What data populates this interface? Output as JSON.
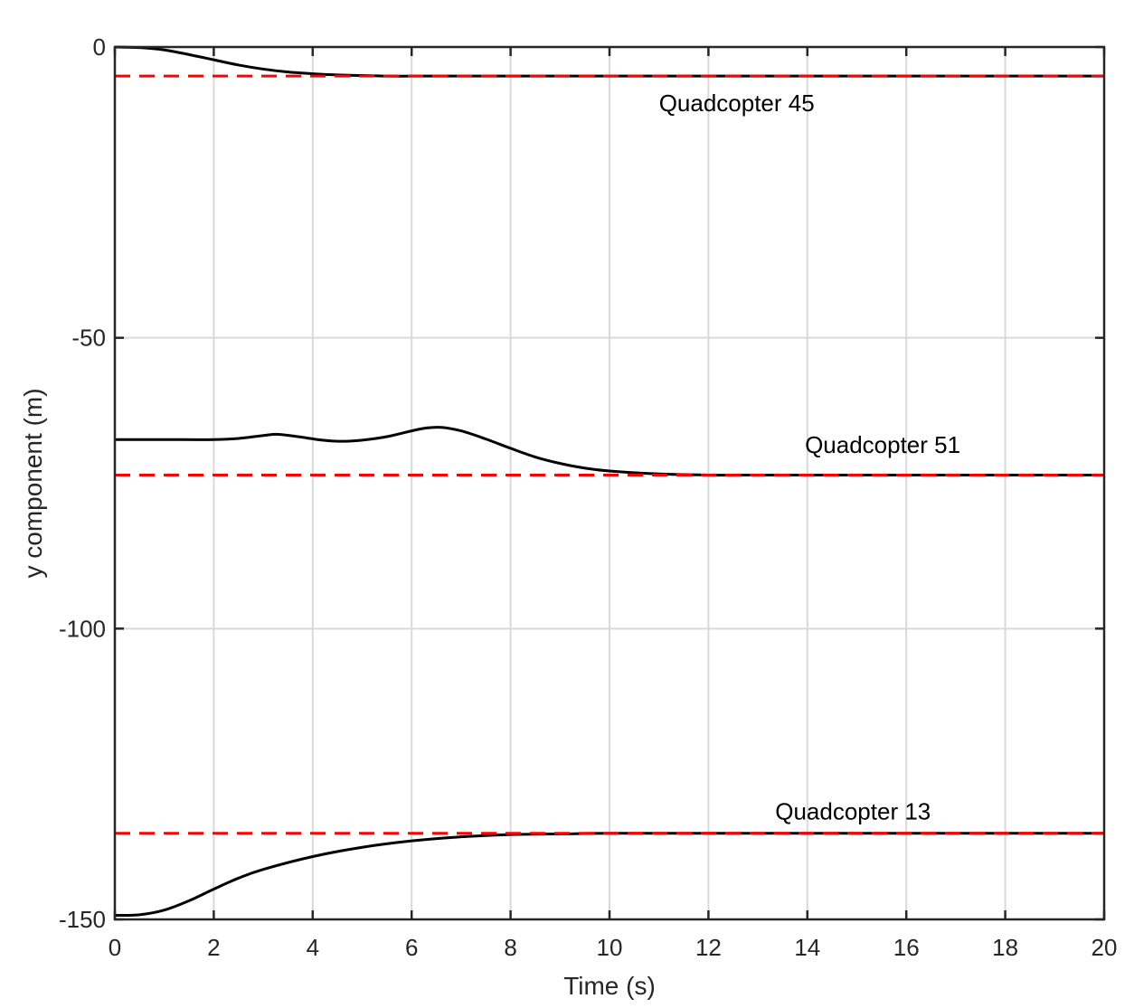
{
  "chart_data": {
    "type": "line",
    "title": "",
    "xlabel": "Time (s)",
    "ylabel": "y component (m)",
    "xlim": [
      0,
      20
    ],
    "ylim": [
      -150,
      0
    ],
    "xticks": [
      0,
      2,
      4,
      6,
      8,
      10,
      12,
      14,
      16,
      18,
      20
    ],
    "yticks": [
      0,
      -50,
      -100,
      -150
    ],
    "grid": true,
    "colors": {
      "trajectory": "#000000",
      "target": "#ff0000",
      "grid": "#d9d9d9",
      "axes": "#262626"
    },
    "series": [
      {
        "style": "solid",
        "x": [
          0,
          0.5,
          1,
          1.5,
          2,
          2.5,
          3,
          3.5,
          4,
          4.5,
          5,
          5.5,
          6,
          6.5,
          7,
          8,
          10,
          12,
          14,
          16,
          18,
          20
        ],
        "y": [
          0,
          -0.1,
          -0.5,
          -1.3,
          -2.2,
          -3.1,
          -3.8,
          -4.3,
          -4.6,
          -4.8,
          -4.9,
          -5.0,
          -5.0,
          -5.0,
          -5.0,
          -5.0,
          -5.0,
          -5.0,
          -5.0,
          -5.0,
          -5.0,
          -5.0
        ]
      },
      {
        "style": "dashed",
        "x": [
          0,
          20
        ],
        "y": [
          -5,
          -5
        ]
      },
      {
        "style": "solid",
        "x": [
          0,
          1,
          2,
          2.5,
          3,
          3.3,
          3.7,
          4.2,
          4.6,
          5,
          5.5,
          6,
          6.3,
          6.6,
          7,
          7.5,
          8,
          8.5,
          9,
          9.5,
          10,
          11,
          12,
          13,
          14,
          16,
          18,
          20
        ],
        "y": [
          -67.5,
          -67.5,
          -67.5,
          -67.3,
          -66.8,
          -66.6,
          -67.0,
          -67.6,
          -67.8,
          -67.6,
          -67.0,
          -66.0,
          -65.5,
          -65.4,
          -66.0,
          -67.4,
          -69.0,
          -70.5,
          -71.6,
          -72.4,
          -72.9,
          -73.4,
          -73.6,
          -73.6,
          -73.6,
          -73.6,
          -73.6,
          -73.6
        ]
      },
      {
        "style": "dashed",
        "x": [
          0,
          20
        ],
        "y": [
          -73.6,
          -73.6
        ]
      },
      {
        "style": "solid",
        "x": [
          0,
          0.5,
          1,
          1.5,
          2,
          2.5,
          3,
          4,
          5,
          6,
          7,
          8,
          9,
          10,
          12,
          14,
          16,
          18,
          20
        ],
        "y": [
          -149.3,
          -149.2,
          -148.4,
          -146.8,
          -144.8,
          -142.9,
          -141.4,
          -139.2,
          -137.6,
          -136.5,
          -135.8,
          -135.4,
          -135.3,
          -135.2,
          -135.2,
          -135.2,
          -135.2,
          -135.2,
          -135.2
        ]
      },
      {
        "style": "dashed",
        "x": [
          0,
          20
        ],
        "y": [
          -135.2,
          -135.2
        ]
      }
    ],
    "annotations": [
      {
        "text": "Quadcopter 45",
        "x": 11.0,
        "y": -11
      },
      {
        "text": "Quadcopter 51",
        "x": 13.95,
        "y": -69.8
      },
      {
        "text": "Quadcopter 13",
        "x": 13.35,
        "y": -132.8
      }
    ]
  }
}
